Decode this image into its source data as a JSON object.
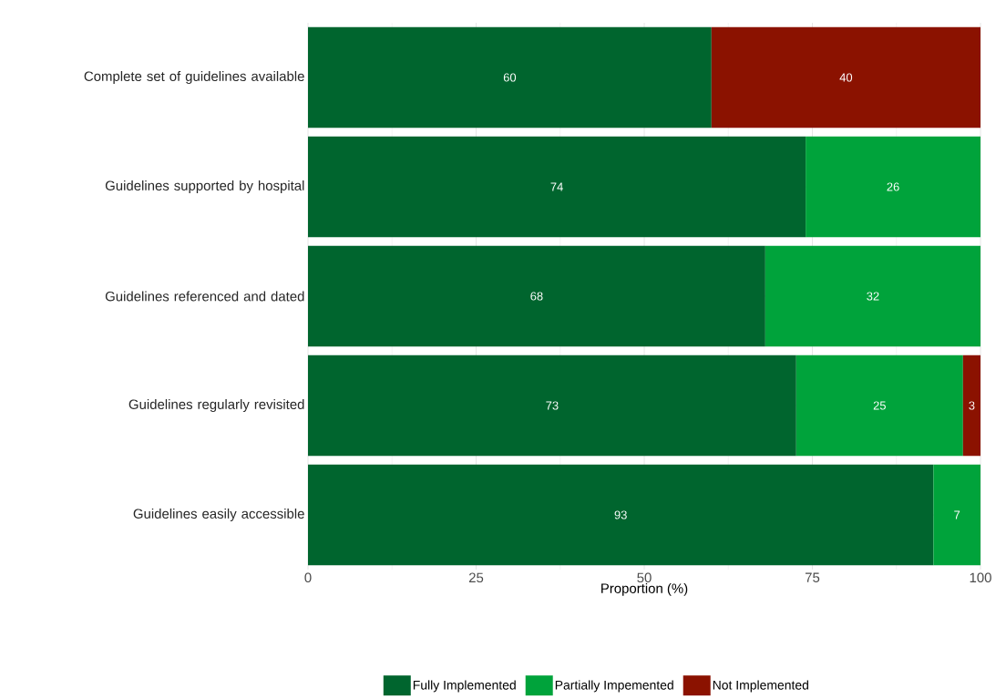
{
  "chart_data": {
    "type": "bar",
    "orientation": "horizontal",
    "stacked": true,
    "categories": [
      "Complete set of guidelines available",
      "Guidelines supported by hospital",
      "Guidelines referenced and dated",
      "Guidelines regularly revisited",
      "Guidelines easily accessible"
    ],
    "series": [
      {
        "name": "Fully Implemented",
        "color": "#00652e",
        "values": [
          60,
          74,
          68,
          72.6,
          93
        ],
        "value_labels": [
          "60",
          "74",
          "68",
          "73",
          "93"
        ]
      },
      {
        "name": "Partially Impemented",
        "color": "#00a33b",
        "values": [
          null,
          26,
          32,
          24.8,
          7
        ],
        "value_labels": [
          null,
          "26",
          "32",
          "25",
          "7"
        ]
      },
      {
        "name": "Not Implemented",
        "color": "#8b1200",
        "values": [
          40,
          null,
          null,
          2.6,
          null
        ],
        "value_labels": [
          "40",
          null,
          null,
          "3",
          null
        ]
      }
    ],
    "xlabel": "Proportion (%)",
    "xlim": [
      0,
      100
    ],
    "xticks": [
      0,
      25,
      50,
      75,
      100
    ],
    "grid": true,
    "legend": "bottom"
  }
}
